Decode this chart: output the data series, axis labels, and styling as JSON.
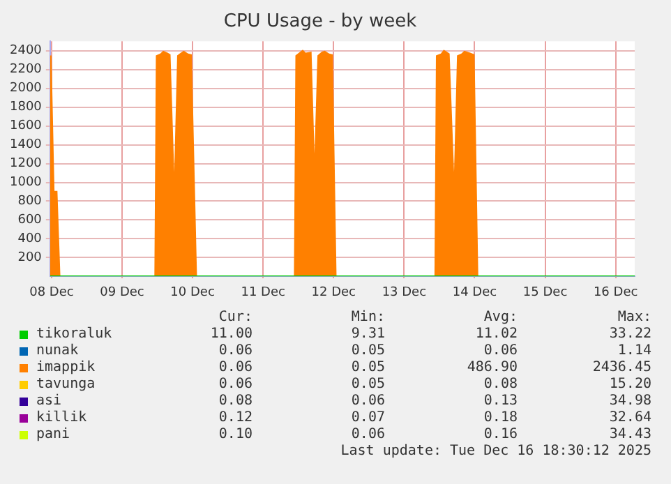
{
  "chart_data": {
    "type": "area",
    "title": "CPU Usage - by week",
    "stacked": true,
    "grid": true,
    "legend": "bottom",
    "x": [
      "2025-12-07T23:30",
      "2025-12-08T00:00",
      "2025-12-08T01:00",
      "2025-12-08T02:00",
      "2025-12-08T03:00",
      "2025-12-09T11:00",
      "2025-12-09T11:30",
      "2025-12-09T13:00",
      "2025-12-09T14:00",
      "2025-12-09T15:30",
      "2025-12-09T16:30",
      "2025-12-09T17:45",
      "2025-12-09T18:45",
      "2025-12-09T20:00",
      "2025-12-09T21:00",
      "2025-12-09T22:30",
      "2025-12-09T23:45",
      "2025-12-10T01:30",
      "2025-12-11T10:30",
      "2025-12-11T11:00",
      "2025-12-11T13:30",
      "2025-12-11T14:30",
      "2025-12-11T16:30",
      "2025-12-11T17:30",
      "2025-12-11T18:30",
      "2025-12-11T20:00",
      "2025-12-11T21:00",
      "2025-12-11T22:30",
      "2025-12-11T23:45",
      "2025-12-12T01:00",
      "2025-12-13T10:20",
      "2025-12-13T10:50",
      "2025-12-13T12:30",
      "2025-12-13T13:30",
      "2025-12-13T15:30",
      "2025-12-13T17:00",
      "2025-12-13T18:00",
      "2025-12-13T19:30",
      "2025-12-13T20:30",
      "2025-12-13T22:30",
      "2025-12-14T00:00",
      "2025-12-14T01:15",
      "2025-12-16T06:30"
    ],
    "series": [
      {
        "name": "tikoraluk",
        "color": "#00cc00",
        "values": [
          10,
          10,
          10,
          10,
          10,
          10,
          10,
          10,
          10,
          10,
          10,
          10,
          10,
          10,
          10,
          10,
          10,
          10,
          10,
          10,
          10,
          10,
          10,
          10,
          10,
          10,
          10,
          10,
          10,
          10,
          10,
          10,
          10,
          10,
          10,
          10,
          10,
          10,
          10,
          10,
          10,
          10,
          10
        ]
      },
      {
        "name": "nunak",
        "color": "#0066b3",
        "values": [
          null,
          null,
          null,
          null,
          null,
          null,
          null,
          null,
          null,
          null,
          null,
          null,
          null,
          null,
          null,
          null,
          null,
          null,
          null,
          null,
          null,
          null,
          null,
          null,
          null,
          null,
          null,
          null,
          null,
          null,
          null,
          null,
          null,
          null,
          null,
          null,
          null,
          null,
          null,
          null,
          null,
          null,
          null
        ]
      },
      {
        "name": "imappik",
        "color": "#ff8000",
        "values": [
          2340,
          2340,
          900,
          900,
          0,
          0,
          2340,
          2360,
          2390,
          2370,
          2350,
          1100,
          2340,
          2370,
          2390,
          2360,
          2350,
          0,
          0,
          2340,
          2400,
          2370,
          2380,
          1300,
          2340,
          2380,
          2390,
          2360,
          2350,
          0,
          0,
          2340,
          2360,
          2400,
          2360,
          1100,
          2340,
          2360,
          2390,
          2370,
          2350,
          0,
          0
        ]
      },
      {
        "name": "tavunga",
        "color": "#ffcc00",
        "values": [
          null,
          null,
          null,
          null,
          null,
          null,
          null,
          null,
          null,
          null,
          null,
          null,
          null,
          null,
          null,
          null,
          null,
          null,
          null,
          null,
          null,
          null,
          null,
          null,
          null,
          null,
          null,
          null,
          null,
          null,
          null,
          null,
          null,
          null,
          null,
          null,
          null,
          null,
          null,
          null,
          null,
          null,
          null
        ]
      },
      {
        "name": "asi",
        "color": "#330099",
        "values": [
          null,
          null,
          null,
          null,
          null,
          null,
          null,
          null,
          null,
          null,
          null,
          null,
          null,
          null,
          null,
          null,
          null,
          null,
          null,
          null,
          null,
          null,
          null,
          null,
          null,
          null,
          null,
          null,
          null,
          null,
          null,
          null,
          null,
          null,
          null,
          null,
          null,
          null,
          null,
          null,
          null,
          null,
          null
        ]
      },
      {
        "name": "killik",
        "color": "#990099",
        "values": [
          null,
          null,
          null,
          null,
          null,
          null,
          null,
          null,
          null,
          null,
          null,
          null,
          null,
          null,
          null,
          null,
          null,
          null,
          null,
          null,
          null,
          null,
          null,
          null,
          null,
          null,
          null,
          null,
          null,
          null,
          null,
          null,
          null,
          null,
          null,
          null,
          null,
          null,
          null,
          null,
          null,
          null,
          null
        ]
      },
      {
        "name": "pani",
        "color": "#ccff00",
        "values": [
          null,
          null,
          null,
          null,
          null,
          null,
          null,
          null,
          null,
          null,
          null,
          null,
          null,
          null,
          null,
          null,
          null,
          null,
          null,
          null,
          null,
          null,
          null,
          null,
          null,
          null,
          null,
          null,
          null,
          null,
          null,
          null,
          null,
          null,
          null,
          null,
          null,
          null,
          null,
          null,
          null,
          null,
          null
        ]
      }
    ],
    "xlim": [
      "2025-12-07T23:30",
      "2025-12-16T06:30"
    ],
    "xticks": [
      {
        "value": "2025-12-08",
        "label": "08 Dec"
      },
      {
        "value": "2025-12-09",
        "label": "09 Dec"
      },
      {
        "value": "2025-12-10",
        "label": "10 Dec"
      },
      {
        "value": "2025-12-11",
        "label": "11 Dec"
      },
      {
        "value": "2025-12-12",
        "label": "12 Dec"
      },
      {
        "value": "2025-12-13",
        "label": "13 Dec"
      },
      {
        "value": "2025-12-14",
        "label": "14 Dec"
      },
      {
        "value": "2025-12-15",
        "label": "15 Dec"
      },
      {
        "value": "2025-12-16",
        "label": "16 Dec"
      }
    ],
    "ylim": [
      0,
      2500
    ],
    "yticks": [
      200,
      400,
      600,
      800,
      1000,
      1200,
      1400,
      1600,
      1800,
      2000,
      2200,
      2400
    ],
    "annotations": [
      "Cur: Min: Avg: Max:",
      "11.00 9.31 11.02 33.22",
      "0.06 0.05 0.06 1.14",
      "0.06 0.05 486.90 2436.45",
      "0.06 0.05 0.08 15.20",
      "0.08 0.06 0.13 34.98",
      "0.12 0.07 0.18 32.64",
      "0.10 0.06 0.16 34.43",
      "Last update: Tue Dec 16 18:30:12 2025"
    ]
  }
}
